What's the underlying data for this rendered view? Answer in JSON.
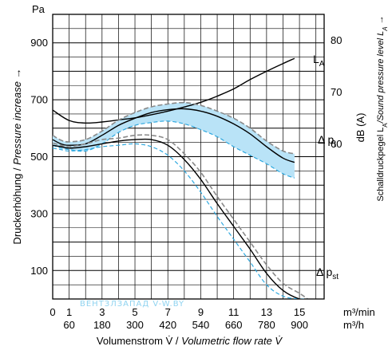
{
  "chart_data": {
    "type": "line",
    "left_axis": {
      "unit": "Pa",
      "ylim": [
        0,
        1000
      ],
      "ticks": [
        100,
        300,
        500,
        700,
        900
      ],
      "label_plain": "Druckerhöhung / ",
      "label_italic": "Pressure increase →"
    },
    "right_axis": {
      "unit": "dB (A)",
      "ylim": [
        30,
        85
      ],
      "ticks": [
        60,
        70,
        80
      ],
      "label_plain": "Schalldruckpegel L",
      "label_sub": "A",
      "label_italic": "/Sound pressure level L",
      "label_sub2": "A",
      "label_arrow": " →"
    },
    "x_axis_primary": {
      "unit": "m³/min",
      "ticks": [
        0,
        1,
        3,
        5,
        7,
        9,
        11,
        13,
        15
      ],
      "tick_labels": [
        "0",
        "1",
        "3",
        "5",
        "7",
        "9",
        "11",
        "13",
        "15"
      ]
    },
    "x_axis_secondary": {
      "unit": "m³/h",
      "tick_labels": [
        "60",
        "180",
        "300",
        "420",
        "540",
        "660",
        "780",
        "900"
      ],
      "tick_positions": [
        1,
        3,
        5,
        7,
        9,
        11,
        13,
        15
      ]
    },
    "x_label_plain": "Volumenstrom V̇ / ",
    "x_label_italic": "Volumetric flow rate V̇",
    "xlim": [
      0,
      16.5
    ],
    "grid": true,
    "series": [
      {
        "name": "L",
        "name_sub": "A",
        "axis": "right",
        "x": [
          0,
          1,
          2,
          3,
          4,
          5,
          6,
          7,
          8,
          9,
          10,
          11,
          12,
          13,
          14,
          14.7
        ],
        "y": [
          66.5,
          64.5,
          64.0,
          64.2,
          64.6,
          65.0,
          65.6,
          66.3,
          67.1,
          68.0,
          69.2,
          70.6,
          72.4,
          74.0,
          75.5,
          76.5
        ]
      },
      {
        "name": "Δ p",
        "name_sub": "t",
        "axis": "left",
        "x": [
          0,
          0.5,
          1,
          2,
          3,
          4,
          5,
          6,
          7,
          8,
          9,
          10,
          11,
          12,
          13,
          14,
          14.7
        ],
        "y": [
          560,
          545,
          540,
          545,
          575,
          610,
          635,
          655,
          665,
          668,
          660,
          642,
          615,
          580,
          535,
          495,
          480
        ],
        "band_upper": [
          575,
          558,
          552,
          560,
          590,
          628,
          655,
          675,
          685,
          690,
          680,
          660,
          635,
          600,
          555,
          520,
          510
        ],
        "band_lower": [
          540,
          530,
          525,
          520,
          545,
          585,
          610,
          620,
          625,
          615,
          595,
          570,
          535,
          505,
          475,
          440,
          425
        ]
      },
      {
        "name": "Δ p",
        "name_sub": "st",
        "axis": "left",
        "x": [
          0,
          0.5,
          1,
          2,
          3,
          4,
          5,
          6,
          7,
          8,
          9,
          10,
          11,
          12,
          13,
          14,
          15,
          15.5
        ],
        "y": [
          540,
          535,
          530,
          535,
          545,
          555,
          560,
          560,
          540,
          490,
          420,
          335,
          255,
          175,
          90,
          30,
          0,
          0
        ],
        "dashed_upper": [
          548,
          540,
          535,
          545,
          560,
          565,
          575,
          575,
          560,
          510,
          445,
          360,
          280,
          200,
          120,
          55,
          20,
          0
        ],
        "dashed_lower": [
          530,
          525,
          520,
          525,
          535,
          540,
          545,
          535,
          505,
          450,
          375,
          290,
          210,
          130,
          50,
          10,
          0,
          0
        ]
      }
    ]
  },
  "watermark": "ВЕНТЗЛЗАПАД  V-W.BY"
}
